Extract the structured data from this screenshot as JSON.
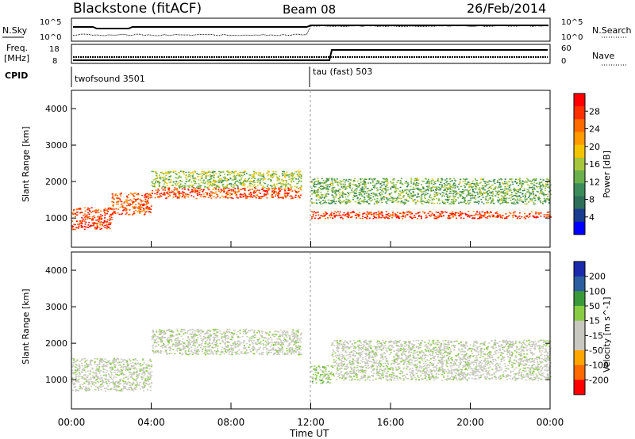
{
  "header": {
    "station": "Blackstone (fitACF)",
    "beam": "Beam 08",
    "date": "26/Feb/2014"
  },
  "panels": {
    "nsky_label": "N.Sky",
    "nsky_ticks": [
      "10^5",
      "10^0"
    ],
    "nsearch_label": "N.Search",
    "nsearch_ticks": [
      "10^5",
      "10^0"
    ],
    "freq_label_1": "Freq.",
    "freq_label_2": "[MHz]",
    "freq_ticks": [
      "18",
      "8"
    ],
    "nave_label": "Nave",
    "nave_ticks": [
      "60",
      "0"
    ],
    "cpid_label": "CPID",
    "cpid_segments": [
      "twofsound 3501",
      "tau (fast) 503"
    ]
  },
  "colors": {
    "power": [
      "#0000ff",
      "#1b3d8f",
      "#2e6f5a",
      "#3b8c5a",
      "#6ab04c",
      "#a8c63b",
      "#f5c400",
      "#ff9a00",
      "#ff6a00",
      "#ff3000",
      "#ff0000"
    ],
    "velocity": [
      "#ff0000",
      "#ff6a00",
      "#ffa500",
      "#c8c8c0",
      "#c8c8c0",
      "#88cc44",
      "#3a9a3a",
      "#2a5ea0",
      "#1a2aaa"
    ]
  },
  "chart_data": [
    {
      "type": "heatmap",
      "title": "",
      "xlabel": "",
      "ylabel": "Slant Range [km]",
      "xlim": [
        "00:00",
        "24:00"
      ],
      "ylim": [
        200,
        4500
      ],
      "y_ticks": [
        1000,
        2000,
        3000,
        4000
      ],
      "colorbar_label": "Power [dB]",
      "colorbar_ticks": [
        "28",
        "24",
        "20",
        "16",
        "12",
        "8",
        "4"
      ],
      "colorbar_range": [
        0,
        30
      ],
      "bands": [
        {
          "from_h": 0.0,
          "to_h": 2.0,
          "range_lo": 700,
          "range_hi": 1300,
          "level": 27
        },
        {
          "from_h": 2.0,
          "to_h": 4.0,
          "range_lo": 1100,
          "range_hi": 1700,
          "level": 25
        },
        {
          "from_h": 4.0,
          "to_h": 11.5,
          "range_lo": 1550,
          "range_hi": 1850,
          "level": 26
        },
        {
          "from_h": 4.0,
          "to_h": 11.5,
          "range_lo": 1850,
          "range_hi": 2300,
          "level": 14
        },
        {
          "from_h": 12.0,
          "to_h": 24.0,
          "range_lo": 1000,
          "range_hi": 1200,
          "level": 27
        },
        {
          "from_h": 12.0,
          "to_h": 24.0,
          "range_lo": 1400,
          "range_hi": 2100,
          "level": 12
        }
      ]
    },
    {
      "type": "heatmap",
      "title": "",
      "xlabel": "Time UT",
      "ylabel": "Slant Range [km]",
      "xlim": [
        "00:00",
        "24:00"
      ],
      "x_ticks": [
        "00:00",
        "04:00",
        "08:00",
        "12:00",
        "16:00",
        "20:00",
        "00:00"
      ],
      "ylim": [
        200,
        4500
      ],
      "y_ticks": [
        1000,
        2000,
        3000,
        4000
      ],
      "colorbar_label": "Velocity [m s^-1]",
      "colorbar_ticks": [
        "200",
        "100",
        "50",
        "15",
        "-15",
        "-50",
        "-100",
        "-200"
      ],
      "colorbar_range": [
        -250,
        250
      ],
      "bands": [
        {
          "from_h": 0.0,
          "to_h": 4.0,
          "range_lo": 700,
          "range_hi": 1600,
          "level": 0
        },
        {
          "from_h": 4.0,
          "to_h": 11.5,
          "range_lo": 1700,
          "range_hi": 2400,
          "level": 0
        },
        {
          "from_h": 12.0,
          "to_h": 13.0,
          "range_lo": 900,
          "range_hi": 1400,
          "level": 40
        },
        {
          "from_h": 13.0,
          "to_h": 24.0,
          "range_lo": 1000,
          "range_hi": 2100,
          "level": 0
        }
      ]
    }
  ]
}
